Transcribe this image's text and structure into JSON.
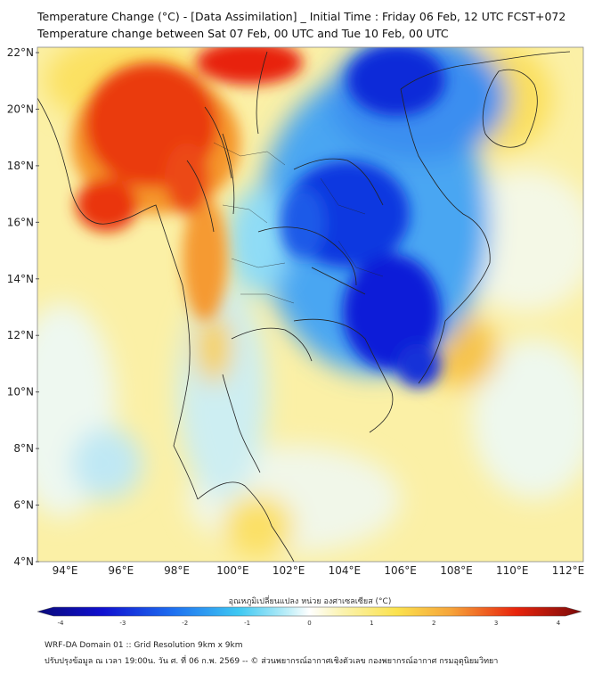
{
  "title_line1": "Temperature Change (°C) - [Data Assimilation] _ Initial Time : Friday 06 Feb, 12 UTC FCST+072",
  "title_line2": "Temperature change between Sat 07 Feb, 00 UTC and Tue 10 Feb, 00 UTC",
  "lat_labels": [
    "22°N",
    "20°N",
    "18°N",
    "16°N",
    "14°N",
    "12°N",
    "10°N",
    "8°N",
    "6°N",
    "4°N"
  ],
  "lon_labels": [
    "94°E",
    "96°E",
    "98°E",
    "100°E",
    "102°E",
    "104°E",
    "106°E",
    "108°E",
    "110°E",
    "112°E"
  ],
  "colorbar": {
    "title": "อุณหภูมิเปลี่ยนแปลง หน่วย องศาเซลเซียส (°C)",
    "min": -4,
    "max": 4,
    "tick_labels": [
      "-4",
      "-3",
      "-2",
      "-1",
      "0",
      "1",
      "2",
      "3",
      "4"
    ]
  },
  "footer_line1": "WRF-DA Domain 01 :: Grid Resolution 9km x 9km",
  "footer_line2": "ปรับปรุงข้อมูล ณ เวลา 19:00น. วัน ศ. ที่ 06 ก.พ. 2569 -- © ส่วนพยากรณ์อากาศเชิงตัวเลข กองพยากรณ์อากาศ กรมอุตุนิยมวิทยา",
  "colors": {
    "deep_blue": "#0a1fd8",
    "blue": "#1e6ef0",
    "light_blue": "#8fdcf6",
    "pale": "#f2f7e8",
    "yellow": "#fbe97a",
    "orange": "#f6a43a",
    "red": "#e8240c"
  }
}
